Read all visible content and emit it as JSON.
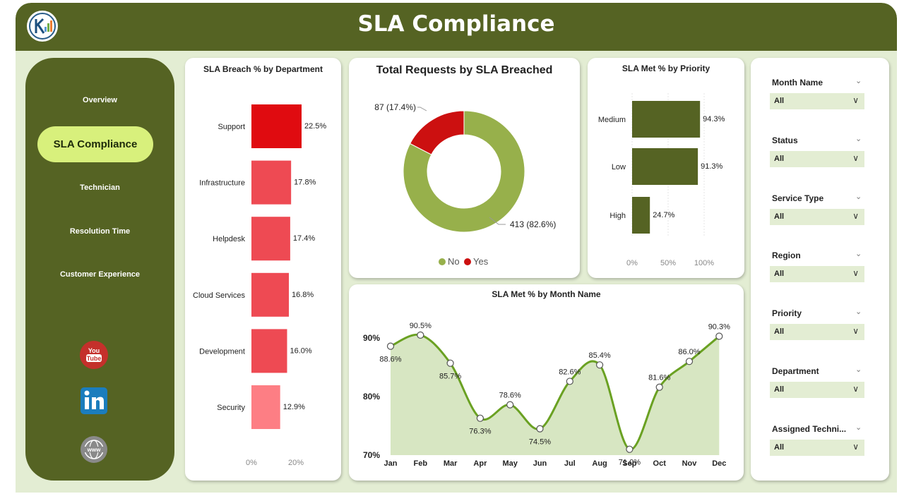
{
  "header": {
    "title": "SLA Compliance"
  },
  "nav": {
    "items": [
      "Overview",
      "SLA Compliance",
      "Technician",
      "Resolution Time",
      "Customer Experience"
    ],
    "active_index": 1,
    "social": [
      "youtube-icon",
      "linkedin-icon",
      "website-icon"
    ]
  },
  "colors": {
    "header": "#556323",
    "accent": "#d8f07c",
    "green_series": "#97b04b",
    "red_series": "#cc1010",
    "bar_green": "#556323"
  },
  "dept_chart": {
    "title": "SLA Breach % by Department",
    "chart_data": {
      "type": "bar",
      "orientation": "horizontal",
      "categories": [
        "Support",
        "Infrastructure",
        "Helpdesk",
        "Cloud Services",
        "Development",
        "Security"
      ],
      "values": [
        22.5,
        17.8,
        17.4,
        16.8,
        16.0,
        12.9
      ],
      "value_labels": [
        "22.5%",
        "17.8%",
        "17.4%",
        "16.8%",
        "16.0%",
        "12.9%"
      ],
      "x_ticks": [
        "0%",
        "20%"
      ],
      "xlim": [
        0,
        26
      ]
    }
  },
  "donut_chart": {
    "title": "Total Requests by SLA Breached",
    "chart_data": {
      "type": "pie",
      "categories": [
        "No",
        "Yes"
      ],
      "values": [
        413,
        87
      ],
      "value_labels": [
        "413 (82.6%)",
        "87 (17.4%)"
      ],
      "legend": [
        "No",
        "Yes"
      ],
      "legend_position": "bottom"
    }
  },
  "priority_chart": {
    "title": "SLA Met % by Priority",
    "chart_data": {
      "type": "bar",
      "orientation": "horizontal",
      "categories": [
        "Medium",
        "Low",
        "High"
      ],
      "values": [
        94.3,
        91.3,
        24.7
      ],
      "value_labels": [
        "94.3%",
        "91.3%",
        "24.7%"
      ],
      "x_ticks": [
        "0%",
        "50%",
        "100%"
      ],
      "xlim": [
        0,
        100
      ]
    }
  },
  "month_chart": {
    "title": "SLA Met % by Month Name",
    "chart_data": {
      "type": "area",
      "categories": [
        "Jan",
        "Feb",
        "Mar",
        "Apr",
        "May",
        "Jun",
        "Jul",
        "Aug",
        "Sep",
        "Oct",
        "Nov",
        "Dec"
      ],
      "values": [
        88.6,
        90.5,
        85.7,
        76.3,
        78.6,
        74.5,
        82.6,
        85.4,
        71.0,
        81.6,
        86.0,
        90.3
      ],
      "value_labels": [
        "88.6%",
        "90.5%",
        "85.7%",
        "76.3%",
        "78.6%",
        "74.5%",
        "82.6%",
        "85.4%",
        "71.0%",
        "81.6%",
        "86.0%",
        "90.3%"
      ],
      "y_ticks": [
        "90%",
        "80%",
        "70%"
      ],
      "y_tick_values": [
        90,
        80,
        70
      ],
      "ylim": [
        70,
        92
      ]
    }
  },
  "slicers": [
    {
      "label": "Month Name",
      "value": "All"
    },
    {
      "label": "Status",
      "value": "All"
    },
    {
      "label": "Service Type",
      "value": "All"
    },
    {
      "label": "Region",
      "value": "All"
    },
    {
      "label": "Priority",
      "value": "All"
    },
    {
      "label": "Department",
      "value": "All"
    },
    {
      "label": "Assigned Techni...",
      "value": "All"
    }
  ]
}
